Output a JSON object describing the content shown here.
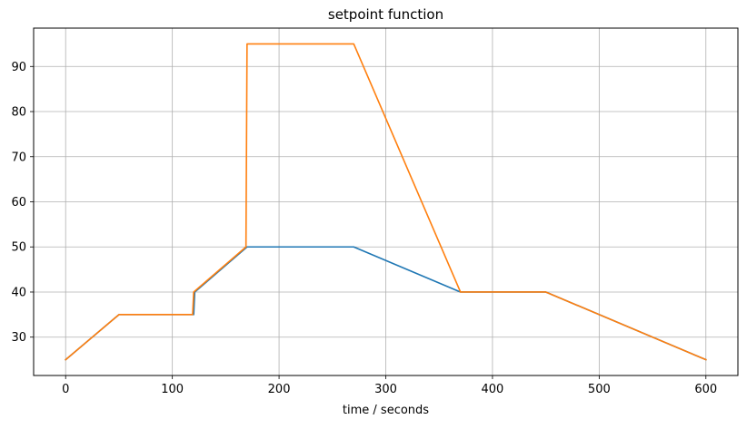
{
  "chart_data": {
    "type": "line",
    "title": "setpoint function",
    "xlabel": "time / seconds",
    "ylabel": "",
    "xlim": [
      -30,
      630
    ],
    "ylim": [
      21.5,
      98.5
    ],
    "xticks": [
      0,
      100,
      200,
      300,
      400,
      500,
      600
    ],
    "yticks": [
      30,
      40,
      50,
      60,
      70,
      80,
      90
    ],
    "grid": true,
    "series": [
      {
        "color": "#1f77b4",
        "x": [
          0,
          50,
          120,
          121,
          170,
          270,
          370,
          450,
          600
        ],
        "y": [
          25,
          35,
          35,
          40,
          50,
          50,
          40,
          40,
          25
        ]
      },
      {
        "color": "#ff7f0e",
        "x": [
          0,
          50,
          119,
          120,
          169,
          170,
          270,
          370,
          450,
          600
        ],
        "y": [
          25,
          35,
          35,
          40,
          50,
          95,
          95,
          40,
          40,
          25
        ]
      }
    ]
  }
}
